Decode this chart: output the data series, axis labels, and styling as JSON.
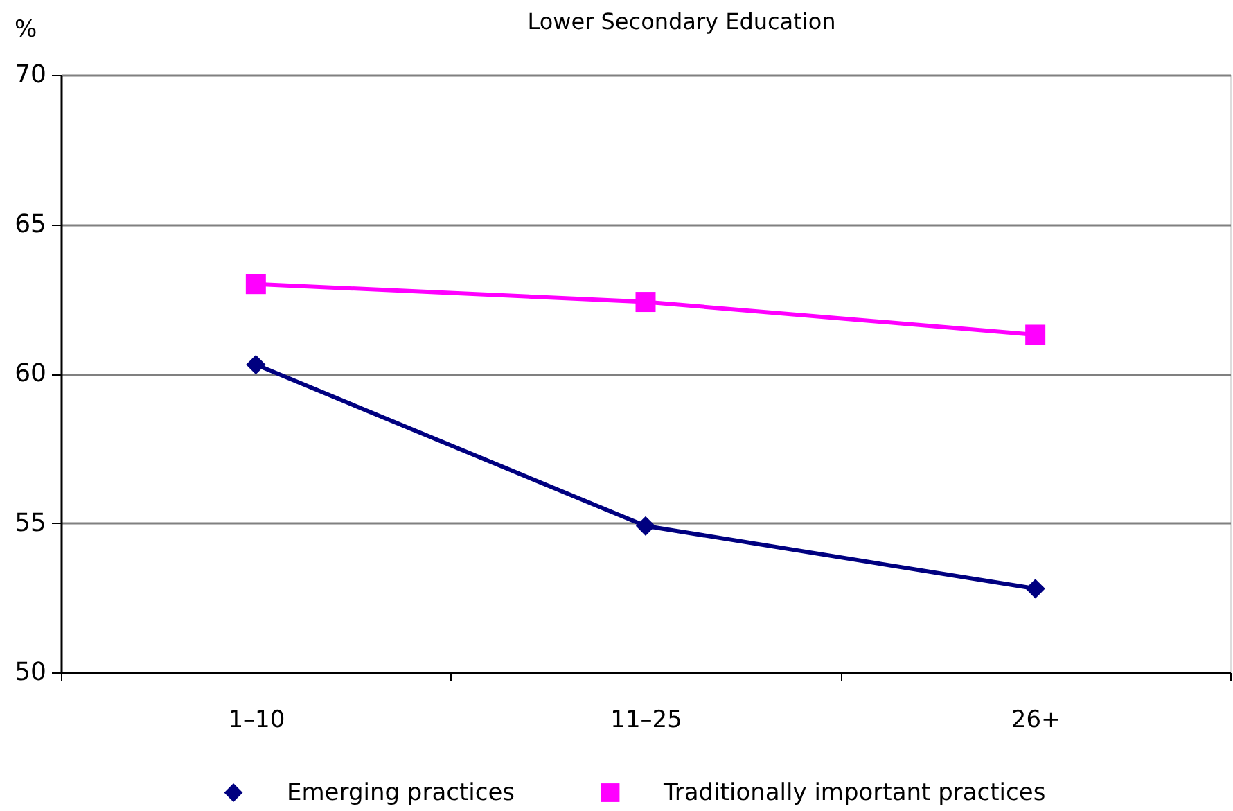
{
  "chart_data": {
    "type": "line",
    "title": "Lower Secondary Education",
    "ylabel": "%",
    "categories": [
      "1–10",
      "11–25",
      "26+"
    ],
    "series": [
      {
        "name": "Emerging practices",
        "color": "#000080",
        "marker": "diamond",
        "values": [
          60.3,
          54.9,
          52.8
        ]
      },
      {
        "name": "Traditionally important practices",
        "color": "#ff00ff",
        "marker": "square",
        "values": [
          63.0,
          62.4,
          61.3
        ]
      }
    ],
    "ylim": [
      50,
      70
    ],
    "yticks": [
      50,
      55,
      60,
      65,
      70
    ],
    "grid": "y",
    "legend": "bottom",
    "line_style": "solid"
  }
}
